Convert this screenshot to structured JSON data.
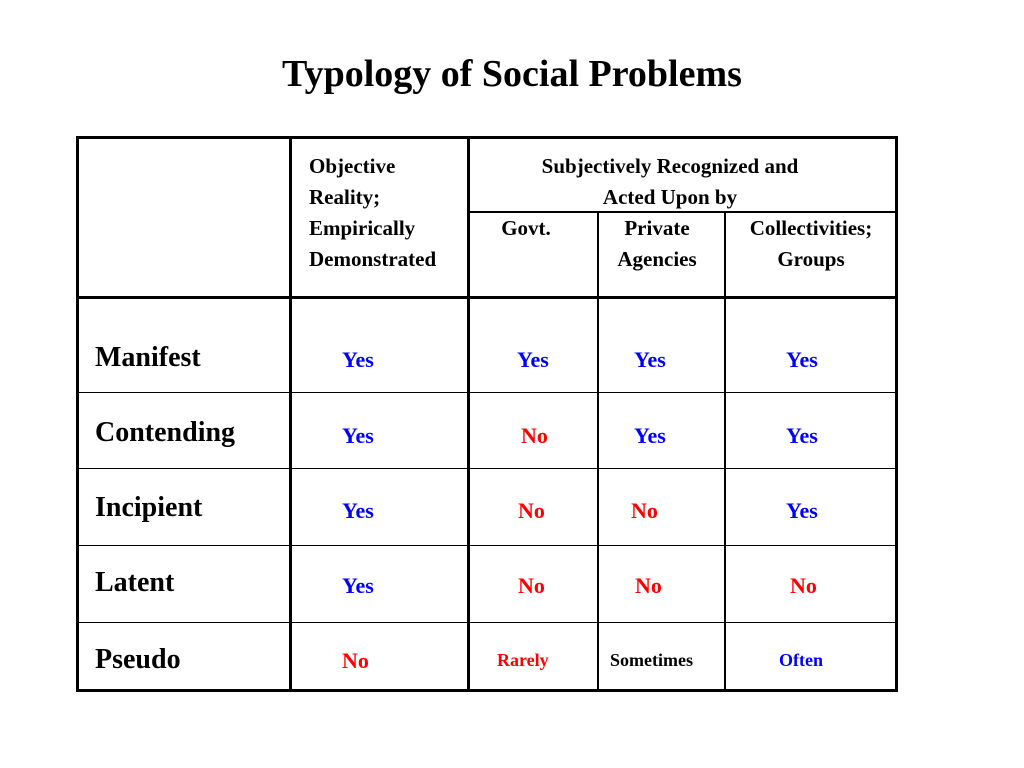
{
  "title": "Typology of Social Problems",
  "colors": {
    "yes": "#0000ff",
    "no": "#ff0000",
    "neutral": "#000000"
  },
  "header": {
    "objective": [
      "Objective",
      "Reality;",
      "Empirically",
      "Demonstrated"
    ],
    "subjective": [
      "Subjectively Recognized and",
      "Acted Upon by"
    ],
    "govt": "Govt.",
    "private": [
      "Private",
      "Agencies"
    ],
    "collectivities": [
      "Collectivities;",
      "Groups"
    ]
  },
  "rows": [
    {
      "label": "Manifest",
      "objective": "Yes",
      "govt": "Yes",
      "private": "Yes",
      "collectivities": "Yes"
    },
    {
      "label": "Contending",
      "objective": "Yes",
      "govt": "No",
      "private": "Yes",
      "collectivities": "Yes"
    },
    {
      "label": "Incipient",
      "objective": "Yes",
      "govt": "No",
      "private": "No",
      "collectivities": "Yes"
    },
    {
      "label": "Latent",
      "objective": "Yes",
      "govt": "No",
      "private": "No",
      "collectivities": "No"
    },
    {
      "label": "Pseudo",
      "objective": "No",
      "govt": "Rarely",
      "private": "Sometimes",
      "collectivities": "Often"
    }
  ]
}
